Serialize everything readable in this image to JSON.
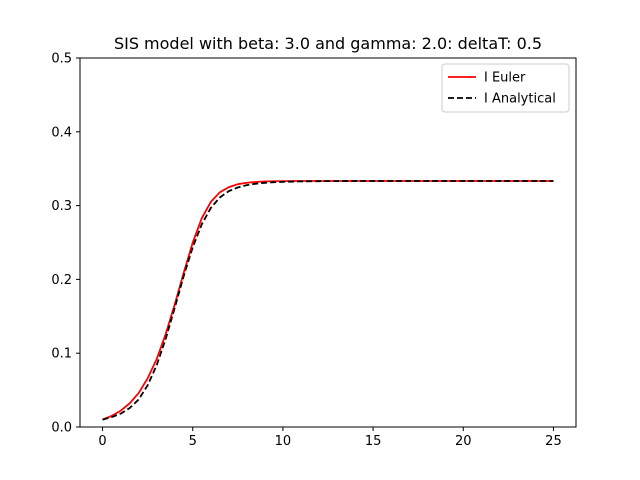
{
  "chart_data": {
    "type": "line",
    "title": "SIS model with beta: 3.0  and gamma: 2.0: deltaT: 0.5",
    "xlabel": "",
    "ylabel": "",
    "xlim": [
      -1.25,
      26.25
    ],
    "ylim": [
      0.0,
      0.5
    ],
    "xticks": [
      0,
      5,
      10,
      15,
      20,
      25
    ],
    "yticks": [
      0.0,
      0.1,
      0.2,
      0.3,
      0.4,
      0.5
    ],
    "xtick_labels": [
      "0",
      "5",
      "10",
      "15",
      "20",
      "25"
    ],
    "ytick_labels": [
      "0.0",
      "0.1",
      "0.2",
      "0.3",
      "0.4",
      "0.5"
    ],
    "grid": false,
    "legend_position": "top-right",
    "series": [
      {
        "name": "I Euler",
        "color": "#ff0000",
        "style": "solid",
        "x": [
          0,
          0.5,
          1,
          1.5,
          2,
          2.5,
          3,
          3.5,
          4,
          4.5,
          5,
          5.5,
          6,
          6.5,
          7,
          7.5,
          8,
          8.5,
          9,
          9.5,
          10,
          11,
          12,
          13,
          14,
          15,
          16,
          17,
          18,
          19,
          20,
          21,
          22,
          23,
          24,
          25
        ],
        "y": [
          0.01,
          0.015,
          0.022,
          0.032,
          0.046,
          0.066,
          0.092,
          0.126,
          0.166,
          0.209,
          0.25,
          0.283,
          0.305,
          0.318,
          0.325,
          0.329,
          0.331,
          0.332,
          0.3328,
          0.333,
          0.3332,
          0.3333,
          0.3333,
          0.3333,
          0.3333,
          0.3333,
          0.3333,
          0.3333,
          0.3333,
          0.3333,
          0.3333,
          0.3333,
          0.3333,
          0.3333,
          0.3333,
          0.3333
        ]
      },
      {
        "name": "I Analytical",
        "color": "#000000",
        "style": "dashed",
        "x": [
          0,
          0.5,
          1,
          1.5,
          2,
          2.5,
          3,
          3.5,
          4,
          4.5,
          5,
          5.5,
          6,
          6.5,
          7,
          7.5,
          8,
          8.5,
          9,
          9.5,
          10,
          11,
          12,
          13,
          14,
          15,
          16,
          17,
          18,
          19,
          20,
          21,
          22,
          23,
          24,
          25
        ],
        "y": [
          0.01,
          0.0133,
          0.018,
          0.0256,
          0.0372,
          0.0565,
          0.0836,
          0.1193,
          0.1612,
          0.2046,
          0.2435,
          0.2746,
          0.2967,
          0.311,
          0.3196,
          0.3246,
          0.3278,
          0.3297,
          0.3309,
          0.3317,
          0.3322,
          0.3328,
          0.3331,
          0.3332,
          0.3333,
          0.3333,
          0.3333,
          0.3333,
          0.3333,
          0.3333,
          0.3333,
          0.3333,
          0.3333,
          0.3333,
          0.3333,
          0.3333
        ]
      }
    ]
  }
}
